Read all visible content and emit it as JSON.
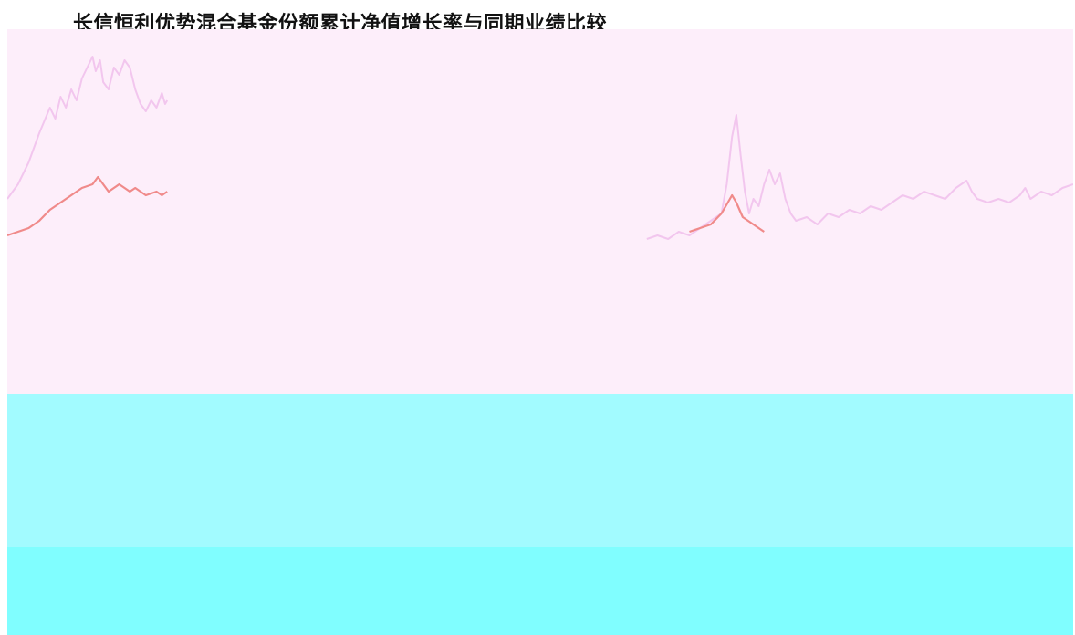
{
  "title": "长信恒利优势混合基金份额累计净值增长率与同期业绩比较",
  "colors": {
    "plot_upper_bg": "#fdeefa",
    "plot_lower_bg": "#a2fbff",
    "plot_bottom_bg": "#80feff",
    "fund_line": "#f2c6ee",
    "benchmark_line": "#f08a8a"
  },
  "chart_data": {
    "type": "line",
    "title": "长信恒利优势混合基金份额累计净值增长率与同期业绩比较",
    "xlabel": "",
    "ylabel": "",
    "x_ticks": [],
    "y_ticks": [],
    "ylim": [
      0,
      1
    ],
    "grid": false,
    "legend": "bottom-left",
    "series": [
      {
        "name": "",
        "color": "#f2c6ee",
        "points": [
          [
            0.0,
            0.56
          ],
          [
            0.01,
            0.6
          ],
          [
            0.02,
            0.66
          ],
          [
            0.03,
            0.74
          ],
          [
            0.04,
            0.81
          ],
          [
            0.045,
            0.78
          ],
          [
            0.05,
            0.84
          ],
          [
            0.055,
            0.81
          ],
          [
            0.06,
            0.86
          ],
          [
            0.065,
            0.83
          ],
          [
            0.07,
            0.89
          ],
          [
            0.075,
            0.92
          ],
          [
            0.08,
            0.95
          ],
          [
            0.083,
            0.91
          ],
          [
            0.087,
            0.94
          ],
          [
            0.09,
            0.88
          ],
          [
            0.095,
            0.86
          ],
          [
            0.1,
            0.92
          ],
          [
            0.105,
            0.9
          ],
          [
            0.11,
            0.94
          ],
          [
            0.115,
            0.92
          ],
          [
            0.12,
            0.86
          ],
          [
            0.125,
            0.82
          ],
          [
            0.13,
            0.8
          ],
          [
            0.135,
            0.83
          ],
          [
            0.14,
            0.81
          ],
          [
            0.145,
            0.85
          ],
          [
            0.148,
            0.82
          ],
          [
            0.15,
            0.83
          ],
          [
            0.6,
            0.45
          ],
          [
            0.61,
            0.46
          ],
          [
            0.62,
            0.45
          ],
          [
            0.63,
            0.47
          ],
          [
            0.64,
            0.46
          ],
          [
            0.65,
            0.48
          ],
          [
            0.66,
            0.5
          ],
          [
            0.67,
            0.52
          ],
          [
            0.675,
            0.6
          ],
          [
            0.68,
            0.73
          ],
          [
            0.684,
            0.79
          ],
          [
            0.688,
            0.68
          ],
          [
            0.692,
            0.58
          ],
          [
            0.696,
            0.52
          ],
          [
            0.7,
            0.56
          ],
          [
            0.705,
            0.54
          ],
          [
            0.71,
            0.6
          ],
          [
            0.715,
            0.64
          ],
          [
            0.72,
            0.6
          ],
          [
            0.725,
            0.63
          ],
          [
            0.73,
            0.56
          ],
          [
            0.735,
            0.52
          ],
          [
            0.74,
            0.5
          ],
          [
            0.75,
            0.51
          ],
          [
            0.76,
            0.49
          ],
          [
            0.77,
            0.52
          ],
          [
            0.78,
            0.51
          ],
          [
            0.79,
            0.53
          ],
          [
            0.8,
            0.52
          ],
          [
            0.81,
            0.54
          ],
          [
            0.82,
            0.53
          ],
          [
            0.83,
            0.55
          ],
          [
            0.84,
            0.57
          ],
          [
            0.85,
            0.56
          ],
          [
            0.86,
            0.58
          ],
          [
            0.87,
            0.57
          ],
          [
            0.88,
            0.56
          ],
          [
            0.89,
            0.59
          ],
          [
            0.9,
            0.61
          ],
          [
            0.905,
            0.58
          ],
          [
            0.91,
            0.56
          ],
          [
            0.92,
            0.55
          ],
          [
            0.93,
            0.56
          ],
          [
            0.94,
            0.55
          ],
          [
            0.95,
            0.57
          ],
          [
            0.955,
            0.59
          ],
          [
            0.96,
            0.56
          ],
          [
            0.97,
            0.58
          ],
          [
            0.98,
            0.57
          ],
          [
            0.99,
            0.59
          ],
          [
            1.0,
            0.6
          ]
        ]
      },
      {
        "name": "",
        "color": "#f08a8a",
        "points": [
          [
            0.0,
            0.46
          ],
          [
            0.01,
            0.47
          ],
          [
            0.02,
            0.48
          ],
          [
            0.03,
            0.5
          ],
          [
            0.04,
            0.53
          ],
          [
            0.05,
            0.55
          ],
          [
            0.06,
            0.57
          ],
          [
            0.07,
            0.59
          ],
          [
            0.08,
            0.6
          ],
          [
            0.085,
            0.62
          ],
          [
            0.09,
            0.6
          ],
          [
            0.095,
            0.58
          ],
          [
            0.1,
            0.59
          ],
          [
            0.105,
            0.6
          ],
          [
            0.11,
            0.59
          ],
          [
            0.115,
            0.58
          ],
          [
            0.12,
            0.59
          ],
          [
            0.125,
            0.58
          ],
          [
            0.13,
            0.57
          ],
          [
            0.14,
            0.58
          ],
          [
            0.145,
            0.57
          ],
          [
            0.15,
            0.58
          ],
          [
            0.64,
            0.47
          ],
          [
            0.65,
            0.48
          ],
          [
            0.66,
            0.49
          ],
          [
            0.67,
            0.52
          ],
          [
            0.676,
            0.55
          ],
          [
            0.68,
            0.57
          ],
          [
            0.684,
            0.55
          ],
          [
            0.69,
            0.51
          ],
          [
            0.695,
            0.5
          ],
          [
            0.7,
            0.49
          ],
          [
            0.705,
            0.48
          ],
          [
            0.71,
            0.47
          ]
        ]
      }
    ]
  }
}
